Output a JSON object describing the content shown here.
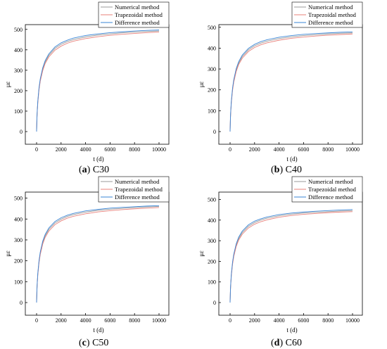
{
  "chart_data": [
    {
      "type": "line",
      "caption": {
        "letter": "a",
        "label": "C30"
      },
      "xlabel": "t (d)",
      "ylabel": "με",
      "xlim": [
        0,
        10000
      ],
      "ylim": [
        0,
        500
      ],
      "xticks": [
        "0",
        "2000",
        "4000",
        "6000",
        "8000",
        "10000"
      ],
      "yticks": [
        "0",
        "100",
        "200",
        "300",
        "400",
        "500"
      ],
      "legend_position": "top-right",
      "grid": false,
      "series": [
        {
          "name": "Numerical method",
          "color": "#9a9a9a",
          "x": [
            0,
            25,
            50,
            100,
            200,
            300,
            500,
            700,
            1000,
            1500,
            2000,
            2500,
            3000,
            4000,
            5000,
            6000,
            7000,
            8000,
            9000,
            10000
          ],
          "y": [
            0,
            60,
            95,
            145,
            210,
            252,
            305,
            340,
            373,
            407,
            427,
            440,
            450,
            463,
            472,
            478,
            483,
            487,
            490,
            492
          ]
        },
        {
          "name": "Trapezoidal method",
          "color": "#e8807a",
          "x": [
            0,
            25,
            50,
            100,
            200,
            300,
            500,
            700,
            1000,
            1500,
            2000,
            2500,
            3000,
            4000,
            5000,
            6000,
            7000,
            8000,
            9000,
            10000
          ],
          "y": [
            0,
            58,
            92,
            140,
            205,
            246,
            298,
            333,
            365,
            398,
            418,
            432,
            442,
            455,
            464,
            471,
            476,
            480,
            484,
            487
          ]
        },
        {
          "name": "Difference method",
          "color": "#3a86d6",
          "x": [
            0,
            25,
            50,
            100,
            200,
            300,
            500,
            700,
            1000,
            1500,
            2000,
            2500,
            3000,
            4000,
            5000,
            6000,
            7000,
            8000,
            9000,
            10000
          ],
          "y": [
            0,
            62,
            98,
            150,
            216,
            258,
            312,
            347,
            380,
            414,
            434,
            447,
            457,
            470,
            478,
            484,
            488,
            492,
            495,
            497
          ]
        }
      ]
    },
    {
      "type": "line",
      "caption": {
        "letter": "b",
        "label": "C40"
      },
      "xlabel": "t (d)",
      "ylabel": "με",
      "xlim": [
        0,
        10000
      ],
      "ylim": [
        0,
        500
      ],
      "xticks": [
        "0",
        "2000",
        "4000",
        "6000",
        "8000",
        "10000"
      ],
      "yticks": [
        "0",
        "100",
        "200",
        "300",
        "400",
        "500"
      ],
      "legend_position": "top-right",
      "grid": false,
      "series": [
        {
          "name": "Numerical method",
          "color": "#9a9a9a",
          "x": [
            0,
            25,
            50,
            100,
            200,
            300,
            500,
            700,
            1000,
            1500,
            2000,
            2500,
            3000,
            4000,
            5000,
            6000,
            7000,
            8000,
            9000,
            10000
          ],
          "y": [
            0,
            58,
            92,
            140,
            202,
            243,
            295,
            328,
            360,
            392,
            411,
            424,
            433,
            446,
            454,
            460,
            464,
            468,
            471,
            473
          ]
        },
        {
          "name": "Trapezoidal method",
          "color": "#e8807a",
          "x": [
            0,
            25,
            50,
            100,
            200,
            300,
            500,
            700,
            1000,
            1500,
            2000,
            2500,
            3000,
            4000,
            5000,
            6000,
            7000,
            8000,
            9000,
            10000
          ],
          "y": [
            0,
            56,
            89,
            136,
            197,
            237,
            288,
            321,
            352,
            384,
            403,
            416,
            425,
            438,
            447,
            453,
            458,
            462,
            465,
            468
          ]
        },
        {
          "name": "Difference method",
          "color": "#3a86d6",
          "x": [
            0,
            25,
            50,
            100,
            200,
            300,
            500,
            700,
            1000,
            1500,
            2000,
            2500,
            3000,
            4000,
            5000,
            6000,
            7000,
            8000,
            9000,
            10000
          ],
          "y": [
            0,
            60,
            95,
            145,
            208,
            249,
            302,
            335,
            367,
            399,
            418,
            431,
            440,
            452,
            460,
            466,
            470,
            473,
            476,
            478
          ]
        }
      ]
    },
    {
      "type": "line",
      "caption": {
        "letter": "c",
        "label": "C50"
      },
      "xlabel": "t (d)",
      "ylabel": "με",
      "xlim": [
        0,
        10000
      ],
      "ylim": [
        0,
        500
      ],
      "xticks": [
        "0",
        "2000",
        "4000",
        "6000",
        "8000",
        "10000"
      ],
      "yticks": [
        "0",
        "100",
        "200",
        "300",
        "400",
        "500"
      ],
      "legend_position": "top-right",
      "grid": false,
      "series": [
        {
          "name": "Numerical method",
          "color": "#9a9a9a",
          "x": [
            0,
            25,
            50,
            100,
            200,
            300,
            500,
            700,
            1000,
            1500,
            2000,
            2500,
            3000,
            4000,
            5000,
            6000,
            7000,
            8000,
            9000,
            10000
          ],
          "y": [
            0,
            56,
            89,
            136,
            196,
            236,
            287,
            319,
            350,
            381,
            399,
            412,
            421,
            433,
            441,
            447,
            451,
            455,
            458,
            460
          ]
        },
        {
          "name": "Trapezoidal method",
          "color": "#e8807a",
          "x": [
            0,
            25,
            50,
            100,
            200,
            300,
            500,
            700,
            1000,
            1500,
            2000,
            2500,
            3000,
            4000,
            5000,
            6000,
            7000,
            8000,
            9000,
            10000
          ],
          "y": [
            0,
            54,
            86,
            132,
            191,
            230,
            280,
            312,
            342,
            373,
            391,
            404,
            413,
            425,
            434,
            440,
            445,
            449,
            452,
            455
          ]
        },
        {
          "name": "Difference method",
          "color": "#3a86d6",
          "x": [
            0,
            25,
            50,
            100,
            200,
            300,
            500,
            700,
            1000,
            1500,
            2000,
            2500,
            3000,
            4000,
            5000,
            6000,
            7000,
            8000,
            9000,
            10000
          ],
          "y": [
            0,
            58,
            92,
            141,
            202,
            242,
            294,
            326,
            357,
            388,
            406,
            418,
            427,
            439,
            446,
            452,
            456,
            459,
            462,
            464
          ]
        }
      ]
    },
    {
      "type": "line",
      "caption": {
        "letter": "d",
        "label": "C60"
      },
      "xlabel": "t (d)",
      "ylabel": "με",
      "xlim": [
        0,
        10000
      ],
      "ylim": [
        0,
        500
      ],
      "xticks": [
        "0",
        "2000",
        "4000",
        "6000",
        "8000",
        "10000"
      ],
      "yticks": [
        "0",
        "100",
        "200",
        "300",
        "400",
        "500"
      ],
      "legend_position": "top-right",
      "grid": false,
      "series": [
        {
          "name": "Numerical method",
          "color": "#9a9a9a",
          "x": [
            0,
            25,
            50,
            100,
            200,
            300,
            500,
            700,
            1000,
            1500,
            2000,
            2500,
            3000,
            4000,
            5000,
            6000,
            7000,
            8000,
            9000,
            10000
          ],
          "y": [
            0,
            54,
            86,
            132,
            190,
            229,
            279,
            310,
            340,
            370,
            388,
            400,
            409,
            421,
            429,
            434,
            438,
            441,
            444,
            446
          ]
        },
        {
          "name": "Trapezoidal method",
          "color": "#e8807a",
          "x": [
            0,
            25,
            50,
            100,
            200,
            300,
            500,
            700,
            1000,
            1500,
            2000,
            2500,
            3000,
            4000,
            5000,
            6000,
            7000,
            8000,
            9000,
            10000
          ],
          "y": [
            0,
            52,
            83,
            128,
            185,
            223,
            272,
            303,
            332,
            362,
            380,
            392,
            401,
            414,
            422,
            428,
            432,
            436,
            439,
            441
          ]
        },
        {
          "name": "Difference method",
          "color": "#3a86d6",
          "x": [
            0,
            25,
            50,
            100,
            200,
            300,
            500,
            700,
            1000,
            1500,
            2000,
            2500,
            3000,
            4000,
            5000,
            6000,
            7000,
            8000,
            9000,
            10000
          ],
          "y": [
            0,
            56,
            89,
            137,
            196,
            235,
            285,
            317,
            347,
            377,
            395,
            406,
            415,
            427,
            434,
            439,
            443,
            446,
            449,
            451
          ]
        }
      ]
    }
  ]
}
